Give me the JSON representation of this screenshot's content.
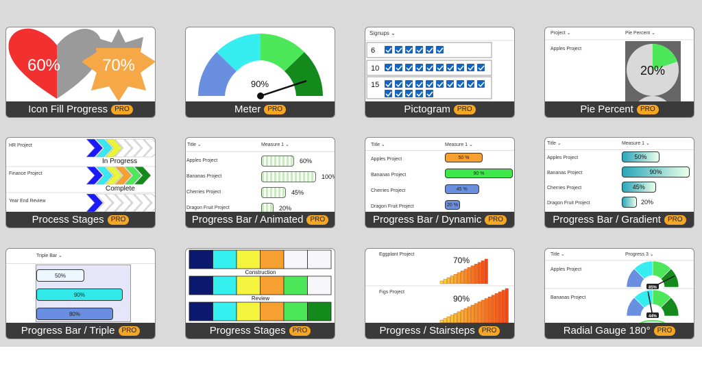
{
  "cards": [
    {
      "title": "Icon Fill Progress",
      "badge": "PRO",
      "heart_value": "60%",
      "star_value": "70%"
    },
    {
      "title": "Meter",
      "badge": "PRO",
      "value": "90%"
    },
    {
      "title": "Pictogram",
      "badge": "PRO",
      "header": "Signups",
      "rows": [
        {
          "label": "6",
          "count": 6
        },
        {
          "label": "10",
          "count": 10
        },
        {
          "label": "15",
          "count": 15
        }
      ]
    },
    {
      "title": "Pie Percent",
      "badge": "PRO",
      "col1": "Project",
      "col2": "Pie Percent",
      "row1": "Apples Project",
      "value": "20%"
    },
    {
      "title": "Process Stages",
      "badge": "PRO",
      "rows": [
        {
          "name": "HR Project",
          "status": "In Progress"
        },
        {
          "name": "Finance Project",
          "status": "Complete"
        },
        {
          "name": "Year End Review",
          "status": ""
        }
      ]
    },
    {
      "title": "Progress Bar / Animated",
      "badge": "PRO",
      "col1": "Title",
      "col2": "Measure 1",
      "rows": [
        {
          "name": "Apples Project",
          "value": "60%",
          "pct": 60
        },
        {
          "name": "Bananas Project",
          "value": "100%",
          "pct": 100
        },
        {
          "name": "Cherries Project",
          "value": "45%",
          "pct": 45
        },
        {
          "name": "Dragon Fruit Project",
          "value": "20%",
          "pct": 20
        }
      ]
    },
    {
      "title": "Progress Bar / Dynamic",
      "badge": "PRO",
      "col1": "Title",
      "col2": "Measure 1",
      "rows": [
        {
          "name": "Apples Project",
          "value": "50 %",
          "color": "#f5a030",
          "pct": 50
        },
        {
          "name": "Bananas Project",
          "value": "90 %",
          "color": "#3ee84a",
          "pct": 90
        },
        {
          "name": "Cherries Project",
          "value": "45 %",
          "color": "#6a8fe0",
          "pct": 45
        },
        {
          "name": "Dragon Fruit Project",
          "value": "20 %",
          "color": "#6a8fe0",
          "pct": 20
        }
      ]
    },
    {
      "title": "Progress Bar / Gradient",
      "badge": "PRO",
      "col1": "Title",
      "col2": "Measure 1",
      "rows": [
        {
          "name": "Apples Project",
          "value": "50%",
          "pct": 50
        },
        {
          "name": "Bananas Project",
          "value": "90%",
          "pct": 90
        },
        {
          "name": "Cherries Project",
          "value": "45%",
          "pct": 45
        },
        {
          "name": "Dragon Fruit Project",
          "value": "20%",
          "pct": 20
        }
      ]
    },
    {
      "title": "Progress Bar / Triple",
      "badge": "PRO",
      "header": "Triple Bar",
      "bars": [
        {
          "value": "50%",
          "color": "#eef6ff",
          "pct": 50
        },
        {
          "value": "90%",
          "color": "#33e8e8",
          "pct": 90
        },
        {
          "value": "80%",
          "color": "#6a8fe0",
          "pct": 80
        }
      ]
    },
    {
      "title": "Progress Stages",
      "badge": "PRO",
      "row2_label": "Construction",
      "row3_label": "Review"
    },
    {
      "title": "Progress / Stairsteps",
      "badge": "PRO",
      "rows": [
        {
          "name": "Eggplant Project",
          "value": "70%",
          "pct": 70
        },
        {
          "name": "Figs Project",
          "value": "90%",
          "pct": 90
        }
      ]
    },
    {
      "title": "Radial Gauge 180°",
      "badge": "PRO",
      "col1": "Title",
      "col2": "Progress 3",
      "rows": [
        {
          "name": "Apples Project",
          "value": "85%"
        },
        {
          "name": "Bananas Project",
          "value": "44%"
        }
      ]
    }
  ]
}
